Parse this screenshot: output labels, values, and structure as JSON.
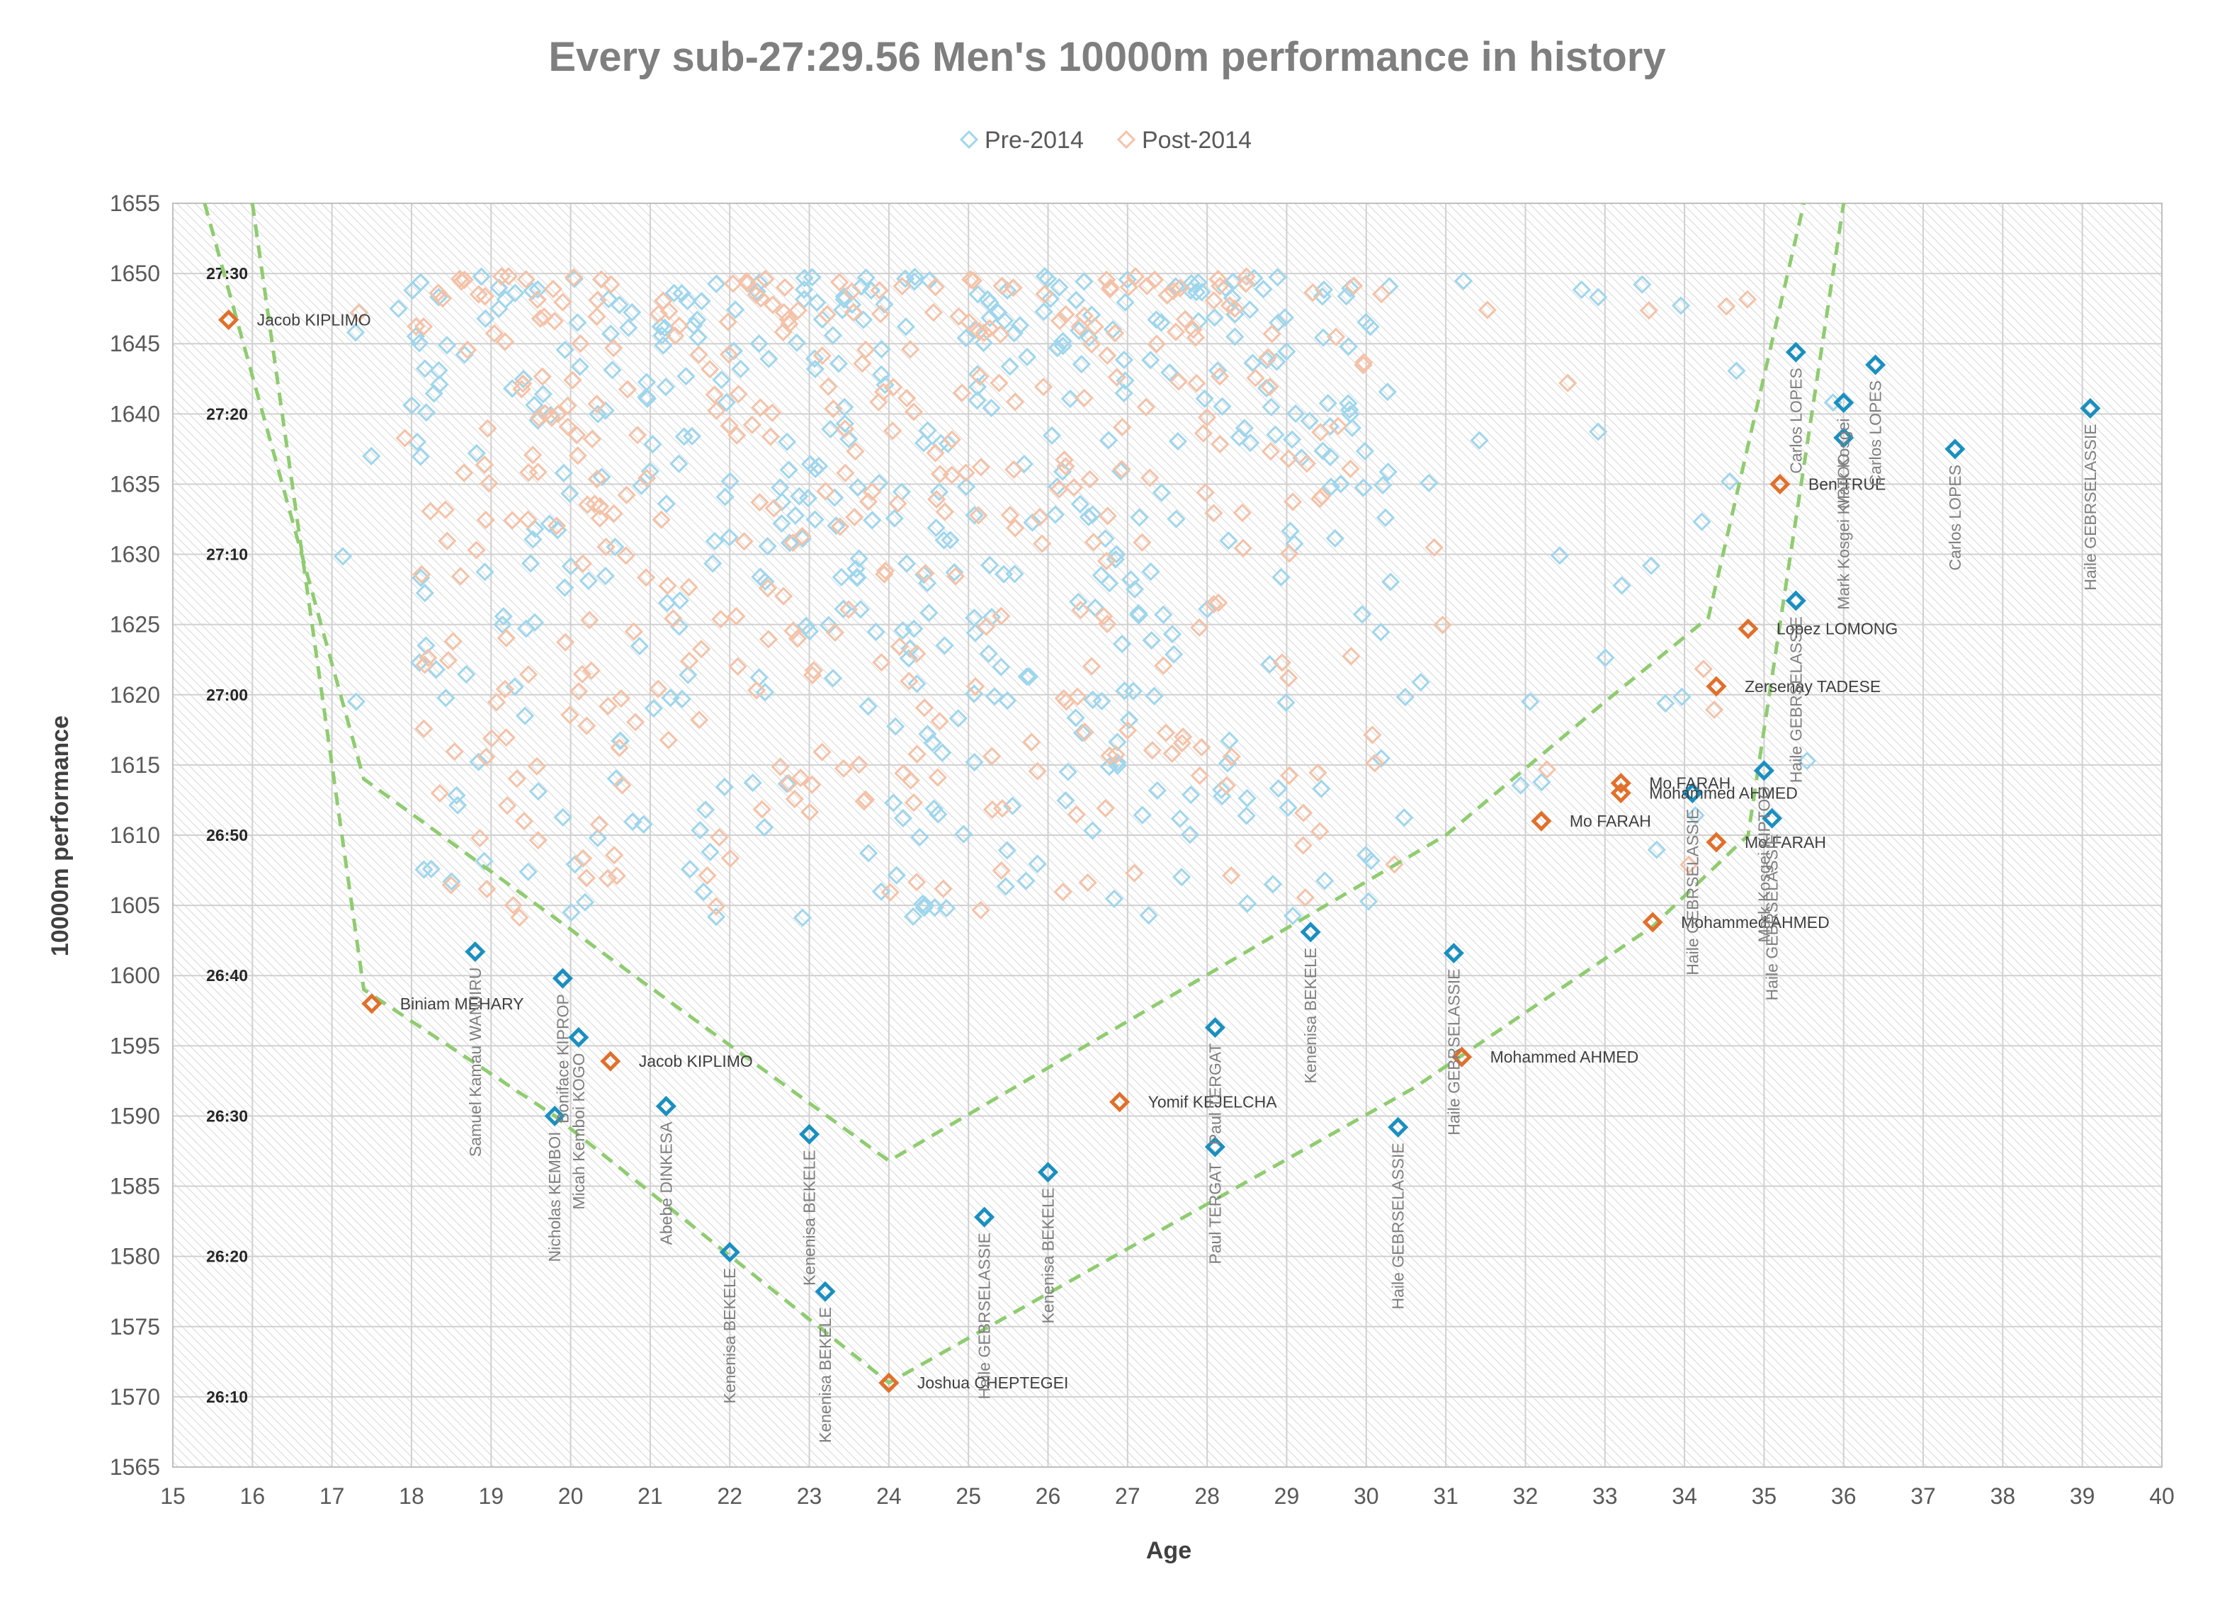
{
  "chart_data": {
    "type": "scatter",
    "title": "Every sub-27:29.56 Men's 10000m performance in history",
    "xlabel": "Age",
    "ylabel": "10000m performance",
    "xlim": [
      15,
      40
    ],
    "ylim": [
      1565,
      1655
    ],
    "x_ticks": [
      15,
      16,
      17,
      18,
      19,
      20,
      21,
      22,
      23,
      24,
      25,
      26,
      27,
      28,
      29,
      30,
      31,
      32,
      33,
      34,
      35,
      36,
      37,
      38,
      39,
      40
    ],
    "y_ticks": [
      1565,
      1570,
      1575,
      1580,
      1585,
      1590,
      1595,
      1600,
      1605,
      1610,
      1615,
      1620,
      1625,
      1630,
      1635,
      1640,
      1645,
      1650,
      1655
    ],
    "time_ticks": [
      {
        "y": 1650,
        "label": "27:30"
      },
      {
        "y": 1640,
        "label": "27:20"
      },
      {
        "y": 1630,
        "label": "27:10"
      },
      {
        "y": 1620,
        "label": "27:00"
      },
      {
        "y": 1610,
        "label": "26:50"
      },
      {
        "y": 1600,
        "label": "26:40"
      },
      {
        "y": 1590,
        "label": "26:30"
      },
      {
        "y": 1580,
        "label": "26:20"
      },
      {
        "y": 1570,
        "label": "26:10"
      }
    ],
    "grid": true,
    "legend_position": "top-center",
    "colors": {
      "pre": "#9fd6ec",
      "post": "#f4c2a8",
      "pre_highlight": "#1a8fc0",
      "post_highlight": "#e0702a",
      "envelope": "#8fcc70",
      "grid": "#d0d0d0",
      "hatch": "#d8d8d8"
    },
    "series": [
      {
        "name": "Pre-2014",
        "role": "pre"
      },
      {
        "name": "Post-2014",
        "role": "post"
      }
    ],
    "highlighted_points": [
      {
        "x": 15.7,
        "y": 1646.7,
        "series": "Post-2014",
        "label": "Jacob KIPLIMO",
        "orient": "h"
      },
      {
        "x": 17.5,
        "y": 1598.0,
        "series": "Post-2014",
        "label": "Biniam MEHARY",
        "orient": "h"
      },
      {
        "x": 18.8,
        "y": 1601.7,
        "series": "Pre-2014",
        "label": "Samuel Kamau WANJIRU",
        "orient": "v"
      },
      {
        "x": 19.9,
        "y": 1599.8,
        "series": "Pre-2014",
        "label": "Boniface KIPROP",
        "orient": "v"
      },
      {
        "x": 19.8,
        "y": 1590.0,
        "series": "Pre-2014",
        "label": "Nicholas KEMBOI",
        "orient": "v"
      },
      {
        "x": 20.1,
        "y": 1595.6,
        "series": "Pre-2014",
        "label": "Micah Kemboi KOGO",
        "orient": "v"
      },
      {
        "x": 20.5,
        "y": 1593.9,
        "series": "Post-2014",
        "label": "Jacob KIPLIMO",
        "orient": "h"
      },
      {
        "x": 21.2,
        "y": 1590.7,
        "series": "Pre-2014",
        "label": "Abebe DINKESA",
        "orient": "v"
      },
      {
        "x": 22.0,
        "y": 1580.3,
        "series": "Pre-2014",
        "label": "Kenenisa BEKELE",
        "orient": "v"
      },
      {
        "x": 23.0,
        "y": 1588.7,
        "series": "Pre-2014",
        "label": "Kenenisa BEKELE",
        "orient": "v"
      },
      {
        "x": 23.2,
        "y": 1577.5,
        "series": "Pre-2014",
        "label": "Kenenisa BEKELE",
        "orient": "v"
      },
      {
        "x": 24.0,
        "y": 1571.0,
        "series": "Post-2014",
        "label": "Joshua CHEPTEGEI",
        "orient": "h"
      },
      {
        "x": 25.2,
        "y": 1582.8,
        "series": "Pre-2014",
        "label": "Haile GEBRSELASSIE",
        "orient": "v"
      },
      {
        "x": 26.0,
        "y": 1586.0,
        "series": "Pre-2014",
        "label": "Kenenisa BEKELE",
        "orient": "v"
      },
      {
        "x": 26.9,
        "y": 1591.0,
        "series": "Post-2014",
        "label": "Yomif KEJELCHA",
        "orient": "h"
      },
      {
        "x": 28.1,
        "y": 1596.3,
        "series": "Pre-2014",
        "label": "Paul TERGAT",
        "orient": "v"
      },
      {
        "x": 28.1,
        "y": 1587.8,
        "series": "Pre-2014",
        "label": "Paul TERGAT",
        "orient": "v"
      },
      {
        "x": 29.3,
        "y": 1603.1,
        "series": "Pre-2014",
        "label": "Kenenisa BEKELE",
        "orient": "v"
      },
      {
        "x": 30.4,
        "y": 1589.2,
        "series": "Pre-2014",
        "label": "Haile GEBRSELASSIE",
        "orient": "v"
      },
      {
        "x": 31.1,
        "y": 1601.6,
        "series": "Pre-2014",
        "label": "Haile GEBRSELASSIE",
        "orient": "v"
      },
      {
        "x": 31.2,
        "y": 1594.2,
        "series": "Post-2014",
        "label": "Mohammed AHMED",
        "orient": "h"
      },
      {
        "x": 32.2,
        "y": 1611.0,
        "series": "Post-2014",
        "label": "Mo FARAH",
        "orient": "h"
      },
      {
        "x": 33.2,
        "y": 1613.7,
        "series": "Post-2014",
        "label": "Mo FARAH",
        "orient": "h"
      },
      {
        "x": 33.2,
        "y": 1613.0,
        "series": "Post-2014",
        "label": "Mohammed AHMED",
        "orient": "h"
      },
      {
        "x": 33.6,
        "y": 1603.8,
        "series": "Post-2014",
        "label": "Mohammed AHMED",
        "orient": "h"
      },
      {
        "x": 34.1,
        "y": 1613.0,
        "series": "Pre-2014",
        "label": "Haile GEBRSELASSIE",
        "orient": "v"
      },
      {
        "x": 34.4,
        "y": 1609.5,
        "series": "Post-2014",
        "label": "Mo FARAH",
        "orient": "h"
      },
      {
        "x": 34.4,
        "y": 1620.6,
        "series": "Post-2014",
        "label": "Zersenay TADESE",
        "orient": "h"
      },
      {
        "x": 34.8,
        "y": 1624.7,
        "series": "Post-2014",
        "label": "Lopez LOMONG",
        "orient": "h"
      },
      {
        "x": 35.0,
        "y": 1614.6,
        "series": "Pre-2014",
        "label": "Mark Kosgei KIPTOO",
        "orient": "v"
      },
      {
        "x": 35.1,
        "y": 1611.2,
        "series": "Pre-2014",
        "label": "Haile GEBRSELASSIE",
        "orient": "v"
      },
      {
        "x": 35.2,
        "y": 1635.0,
        "series": "Post-2014",
        "label": "Ben TRUE",
        "orient": "h"
      },
      {
        "x": 35.4,
        "y": 1626.7,
        "series": "Pre-2014",
        "label": "Haile GEBRSELASSIE",
        "orient": "v"
      },
      {
        "x": 35.4,
        "y": 1644.4,
        "series": "Pre-2014",
        "label": "Carlos LOPES",
        "orient": "v"
      },
      {
        "x": 36.0,
        "y": 1638.3,
        "series": "Pre-2014",
        "label": "Mark Kosgei KIPTOO",
        "orient": "v"
      },
      {
        "x": 36.0,
        "y": 1640.8,
        "series": "Pre-2014",
        "label": "Mark Kosgei",
        "orient": "v"
      },
      {
        "x": 36.4,
        "y": 1643.5,
        "series": "Pre-2014",
        "label": "Carlos LOPES",
        "orient": "v"
      },
      {
        "x": 37.4,
        "y": 1637.5,
        "series": "Pre-2014",
        "label": "Carlos LOPES",
        "orient": "v"
      },
      {
        "x": 39.1,
        "y": 1640.4,
        "series": "Pre-2014",
        "label": "Haile GEBRSELASSIE",
        "orient": "v"
      }
    ],
    "envelope_lines": [
      {
        "name": "outer",
        "points": [
          [
            15.4,
            1655
          ],
          [
            17.4,
            1614
          ],
          [
            24.0,
            1586.8
          ],
          [
            31.0,
            1610
          ],
          [
            33.0,
            1619.5
          ],
          [
            34.3,
            1625.5
          ],
          [
            35.5,
            1655
          ]
        ]
      },
      {
        "name": "inner",
        "points": [
          [
            16.0,
            1655
          ],
          [
            17.4,
            1599
          ],
          [
            19.8,
            1590
          ],
          [
            24.0,
            1571
          ],
          [
            30.6,
            1592
          ],
          [
            33.6,
            1603.5
          ],
          [
            34.8,
            1610
          ],
          [
            36.0,
            1655
          ]
        ]
      }
    ]
  }
}
